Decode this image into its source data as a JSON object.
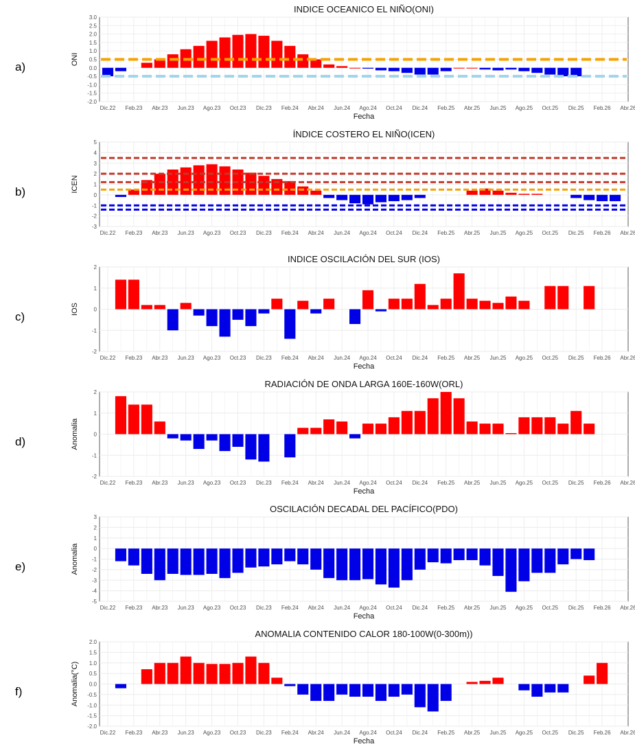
{
  "x_labels": [
    "Dic.22",
    "Feb.23",
    "Abr.23",
    "Jun.23",
    "Ago.23",
    "Oct.23",
    "Dic.23",
    "Feb.24",
    "Abr.24",
    "Jun.24",
    "Ago.24",
    "Oct.24",
    "Dic.24",
    "Feb.25",
    "Abr.25",
    "Jun.25",
    "Ago.25",
    "Oct.25",
    "Dic.25",
    "Feb.26",
    "Abr.26"
  ],
  "x_axis_title": "Fecha",
  "colors": {
    "positive": "#ff0000",
    "negative": "#0000e6",
    "grid": "#ebebeb",
    "panel_border": "#333333"
  },
  "chart_data": [
    {
      "panel_label": "a)",
      "type": "bar",
      "title": "INDICE OCEANICO EL NIÑO(ONI)",
      "ylabel": "ONI",
      "xlabel": "Fecha",
      "ylim": [
        -2.0,
        3.0
      ],
      "yticks": [
        "3.0",
        "2.5",
        "2.0",
        "1.5",
        "1.0",
        "0.5",
        "0.0",
        "-0.5",
        "-1.0",
        "-1.5",
        "-2.0"
      ],
      "x_start": "Dic.22",
      "values": [
        -0.5,
        -0.2,
        null,
        0.3,
        0.5,
        0.8,
        1.1,
        1.3,
        1.6,
        1.8,
        1.95,
        2.0,
        1.9,
        1.6,
        1.3,
        0.8,
        0.5,
        0.2,
        0.1,
        0.0,
        -0.05,
        -0.15,
        -0.2,
        -0.3,
        -0.4,
        -0.4,
        -0.2,
        0.0,
        0.0,
        -0.1,
        -0.15,
        -0.1,
        -0.2,
        -0.3,
        -0.4,
        -0.5,
        -0.5
      ],
      "reference_lines": [
        {
          "y": 0.5,
          "color": "#f5a300"
        },
        {
          "y": -0.5,
          "color": "#9fd4ea"
        }
      ]
    },
    {
      "panel_label": "b)",
      "type": "bar",
      "title": "ÍNDICE COSTERO EL NIÑO(ICEN)",
      "ylabel": "ICEN",
      "xlabel": "",
      "ylim": [
        -3,
        5
      ],
      "yticks": [
        "5",
        "4",
        "3",
        "2",
        "1",
        "0",
        "-1",
        "-2",
        "-3"
      ],
      "x_start": "Jan.23",
      "values": [
        -0.2,
        0.5,
        1.4,
        2.0,
        2.4,
        2.6,
        2.8,
        2.9,
        2.7,
        2.4,
        2.1,
        1.8,
        1.5,
        1.3,
        0.8,
        0.4,
        -0.3,
        -0.5,
        -0.8,
        -0.9,
        -0.7,
        -0.6,
        -0.5,
        -0.3,
        null,
        null,
        null,
        0.4,
        0.6,
        0.4,
        0.2,
        0.1,
        0.1,
        null,
        null,
        -0.3,
        -0.5,
        -0.6,
        -0.6
      ],
      "reference_lines": [
        {
          "y": 3.5,
          "color": "#c0392b"
        },
        {
          "y": 2.0,
          "color": "#c0392b"
        },
        {
          "y": 1.2,
          "color": "#c0392b"
        },
        {
          "y": 0.5,
          "color": "#f5a300"
        },
        {
          "y": -1.0,
          "color": "#0000e6"
        },
        {
          "y": -1.4,
          "color": "#0000e6"
        }
      ]
    },
    {
      "panel_label": "c)",
      "type": "bar",
      "title": "INDICE OSCILACIÓN DEL SUR (IOS)",
      "ylabel": "IOS",
      "xlabel": "Fecha",
      "ylim": [
        -2,
        2
      ],
      "yticks": [
        "2",
        "1",
        "0",
        "-1",
        "-2"
      ],
      "x_start": "Jan.23",
      "values": [
        1.4,
        1.4,
        0.2,
        0.2,
        -1.0,
        0.3,
        -0.3,
        -0.8,
        -1.3,
        -0.5,
        -0.8,
        -0.2,
        0.5,
        -1.4,
        0.4,
        -0.2,
        0.5,
        null,
        -0.7,
        0.9,
        -0.1,
        0.5,
        0.5,
        1.2,
        0.2,
        0.5,
        1.7,
        0.5,
        0.4,
        0.3,
        0.6,
        0.4,
        null,
        1.1,
        1.1,
        null,
        1.1
      ]
    },
    {
      "panel_label": "d)",
      "type": "bar",
      "title": "RADIACIÓN DE ONDA LARGA 160E-160W(ORL)",
      "ylabel": "Anomalia",
      "xlabel": "Fecha",
      "ylim": [
        -2,
        2
      ],
      "yticks": [
        "2",
        "1",
        "0",
        "-1",
        "-2"
      ],
      "x_start": "Jan.23",
      "values": [
        1.8,
        1.4,
        1.4,
        0.6,
        -0.2,
        -0.3,
        -0.7,
        -0.3,
        -0.8,
        -0.6,
        -1.2,
        -1.3,
        null,
        -1.1,
        0.3,
        0.3,
        0.7,
        0.6,
        -0.2,
        0.5,
        0.5,
        0.8,
        1.1,
        1.1,
        1.7,
        2.0,
        1.7,
        0.6,
        0.5,
        0.5,
        0.05,
        0.8,
        0.8,
        0.8,
        0.5,
        1.1,
        0.5
      ]
    },
    {
      "panel_label": "e)",
      "type": "bar",
      "title": "OSCILACIÓN DECADAL DEL PACÍFICO(PDO)",
      "ylabel": "Anomalia",
      "xlabel": "Fecha",
      "ylim": [
        -5,
        3
      ],
      "yticks": [
        "3",
        "2",
        "1",
        "0",
        "-1",
        "-2",
        "-3",
        "-4",
        "-5"
      ],
      "x_start": "Jan.23",
      "values": [
        -1.2,
        -1.6,
        -2.4,
        -3.0,
        -2.4,
        -2.5,
        -2.5,
        -2.4,
        -2.8,
        -2.3,
        -1.8,
        -1.7,
        -1.5,
        -1.2,
        -1.5,
        -2.0,
        -2.8,
        -3.0,
        -3.0,
        -2.9,
        -3.4,
        -3.7,
        -3.0,
        -2.0,
        -1.3,
        -1.4,
        -1.1,
        -1.1,
        -1.6,
        -2.6,
        -4.1,
        -3.1,
        -2.3,
        -2.3,
        -1.5,
        -1.0,
        -1.1
      ]
    },
    {
      "panel_label": "f)",
      "type": "bar",
      "title": "ANOMALIA CONTENIDO CALOR 180-100W(0-300m))",
      "ylabel": "Anomalia(°C)",
      "xlabel": "Fecha",
      "ylim": [
        -2.0,
        2.0
      ],
      "yticks": [
        "2.0",
        "1.5",
        "1.0",
        "0.5",
        "0.0",
        "-0.5",
        "-1.0",
        "-1.5",
        "-2.0"
      ],
      "x_start": "Jan.23",
      "values": [
        -0.2,
        null,
        0.7,
        1.0,
        1.0,
        1.3,
        1.0,
        0.95,
        0.95,
        1.0,
        1.3,
        1.0,
        0.3,
        -0.1,
        -0.5,
        -0.8,
        -0.8,
        -0.5,
        -0.6,
        -0.6,
        -0.8,
        -0.6,
        -0.5,
        -1.1,
        -1.3,
        -0.8,
        null,
        0.1,
        0.15,
        0.3,
        null,
        -0.3,
        -0.6,
        -0.4,
        -0.4,
        null,
        0.4,
        1.0
      ]
    }
  ]
}
